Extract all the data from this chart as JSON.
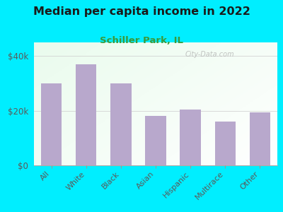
{
  "title": "Median per capita income in 2022",
  "subtitle": "Schiller Park, IL",
  "categories": [
    "All",
    "White",
    "Black",
    "Asian",
    "Hispanic",
    "Multirace",
    "Other"
  ],
  "values": [
    30000,
    37000,
    30000,
    18000,
    20500,
    16000,
    19500
  ],
  "bar_color": "#b8a8cc",
  "background_outer": "#00eeff",
  "background_inner_topleft": "#dcefd8",
  "background_inner_right": "#f5fdf3",
  "background_inner_white": "#ffffff",
  "title_color": "#1a1a1a",
  "subtitle_color": "#3a9a3a",
  "tick_label_color": "#5a5a5a",
  "ylim": [
    0,
    45000
  ],
  "yticks": [
    0,
    20000,
    40000
  ],
  "ytick_labels": [
    "$0",
    "$20k",
    "$40k"
  ],
  "watermark": "City-Data.com",
  "figsize": [
    4.0,
    3.0
  ],
  "dpi": 100
}
